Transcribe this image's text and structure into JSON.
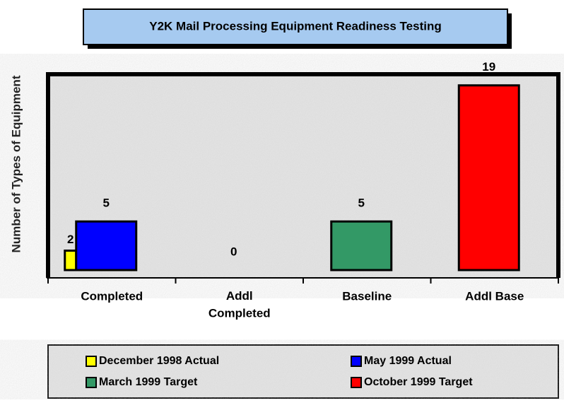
{
  "chart_data": {
    "type": "bar",
    "title": "Y2K Mail Processing Equipment Readiness Testing",
    "y_label": "Number of Types of Equipment",
    "categories": [
      "Completed",
      "Addl\nCompleted",
      "Baseline",
      "Addl Base"
    ],
    "series": [
      {
        "name": "December 1998 Actual",
        "color": "#ffff00",
        "values": [
          2,
          null,
          null,
          null
        ]
      },
      {
        "name": "May 1999 Actual",
        "color": "#0000ff",
        "values": [
          5,
          0,
          null,
          null
        ]
      },
      {
        "name": "March 1999 Target",
        "color": "#339966",
        "values": [
          null,
          null,
          5,
          null
        ]
      },
      {
        "name": "October 1999 Target",
        "color": "#ff0000",
        "values": [
          null,
          null,
          null,
          19
        ]
      }
    ],
    "ylim": [
      0,
      20
    ],
    "legend": "bottom"
  }
}
